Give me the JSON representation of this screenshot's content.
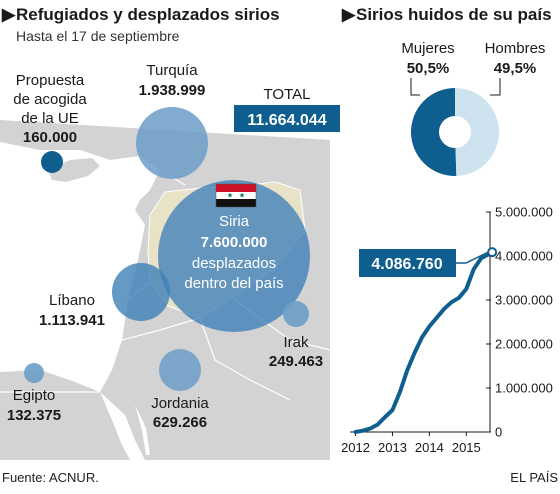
{
  "left": {
    "title": "Refugiados y desplazados sirios",
    "subtitle": "Hasta el 17 de septiembre",
    "total_label": "TOTAL",
    "total_value": "11.664.044",
    "eu": {
      "l1": "Propuesta",
      "l2": "de acogida",
      "l3": "de la UE",
      "value": "160.000"
    },
    "turquia": {
      "name": "Turquía",
      "value": "1.938.999"
    },
    "siria": {
      "name": "Siria",
      "value": "7.600.000",
      "l1": "desplazados",
      "l2": "dentro del país"
    },
    "libano": {
      "name": "Líbano",
      "value": "1.113.941"
    },
    "irak": {
      "name": "Irak",
      "value": "249.463"
    },
    "jordania": {
      "name": "Jordania",
      "value": "629.266"
    },
    "egipto": {
      "name": "Egipto",
      "value": "132.375"
    }
  },
  "right": {
    "title": "Sirios huidos de su país",
    "callout": "4.086.760"
  },
  "footer": {
    "source": "Fuente: ACNUR.",
    "brand": "EL PAÍS"
  },
  "colors": {
    "dark": "#0e5f8f",
    "bubble": "#6b9ec8",
    "light": "#cfe2ef",
    "land": "#d3d3d3",
    "syria_land": "#e8e2c6",
    "sea": "#ffffff"
  },
  "chart_data": [
    {
      "type": "pie",
      "labels": [
        "Mujeres",
        "Hombres"
      ],
      "values": [
        50.5,
        49.5
      ],
      "value_labels": [
        "50,5%",
        "49,5%"
      ],
      "colors": [
        "#0e5f8f",
        "#cfe2ef"
      ]
    },
    {
      "type": "line",
      "x": [
        2012.0,
        2012.2,
        2012.4,
        2012.6,
        2012.8,
        2013.0,
        2013.2,
        2013.4,
        2013.6,
        2013.8,
        2014.0,
        2014.2,
        2014.4,
        2014.6,
        2014.8,
        2015.0,
        2015.2,
        2015.4,
        2015.7
      ],
      "series": [
        {
          "values": [
            0,
            30000,
            80000,
            170000,
            340000,
            500000,
            900000,
            1400000,
            1800000,
            2150000,
            2400000,
            2600000,
            2800000,
            2950000,
            3050000,
            3250000,
            3700000,
            3950000,
            4086760
          ]
        }
      ],
      "ylim": [
        0,
        5000000
      ],
      "yticks": [
        0,
        1000000,
        2000000,
        3000000,
        4000000,
        5000000
      ],
      "ytick_labels": [
        "0",
        "1.000.000",
        "2.000.000",
        "3.000.000",
        "4.000.000",
        "5.000.000"
      ],
      "xticks": [
        2012,
        2013,
        2014,
        2015
      ],
      "xtick_labels": [
        "2012",
        "2013",
        "2014",
        "2015"
      ],
      "xlim": [
        2011.85,
        2015.75
      ],
      "last_value_label": "4.086.760"
    },
    {
      "type": "scatter",
      "labels": [
        "Turquía",
        "Siria",
        "Líbano",
        "Irak",
        "Jordania",
        "Egipto",
        "Propuesta de acogida de la UE"
      ],
      "values": [
        1938999,
        7600000,
        1113941,
        249463,
        629266,
        132375,
        160000
      ]
    }
  ]
}
